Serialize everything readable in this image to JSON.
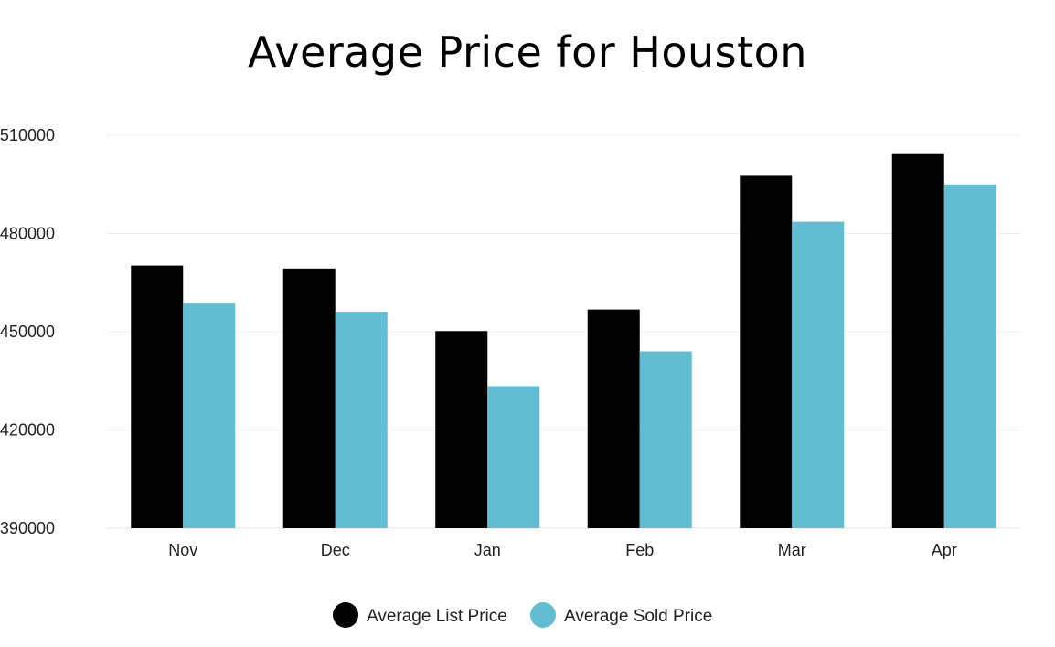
{
  "chart_data": {
    "type": "bar",
    "title": "Average Price for Houston",
    "xlabel": "",
    "ylabel": "",
    "categories": [
      "Nov",
      "Dec",
      "Jan",
      "Feb",
      "Mar",
      "Apr"
    ],
    "series": [
      {
        "name": "Average List Price",
        "color": "#000000",
        "values": [
          470200,
          469300,
          450200,
          456800,
          497600,
          504500
        ]
      },
      {
        "name": "Average Sold Price",
        "color": "#61BED2",
        "values": [
          458600,
          456100,
          433400,
          444000,
          483600,
          495000
        ]
      }
    ],
    "ylim": [
      390000,
      510000
    ],
    "yticks": [
      "390000",
      "420000",
      "450000",
      "480000",
      "510000"
    ],
    "grid": true,
    "legend_position": "bottom-center"
  }
}
